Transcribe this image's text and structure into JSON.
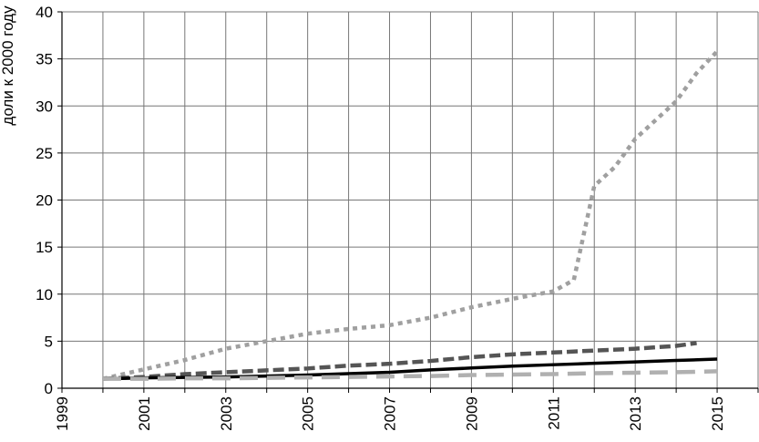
{
  "chart_data": {
    "type": "line",
    "title": "",
    "xlabel": "",
    "ylabel": "доли к 2000 году",
    "xlim": [
      1999,
      2016
    ],
    "ylim": [
      0,
      40
    ],
    "x_ticks": [
      "1999",
      "2001",
      "2003",
      "2005",
      "2007",
      "2009",
      "2011",
      "2013",
      "2015"
    ],
    "y_ticks": [
      "0",
      "5",
      "10",
      "15",
      "20",
      "25",
      "30",
      "35",
      "40"
    ],
    "grid": true,
    "legend": "none",
    "series": [
      {
        "style": "dotted",
        "color": "#a0a0a0",
        "x": [
          2000,
          2001,
          2002,
          2003,
          2004,
          2005,
          2006,
          2007,
          2008,
          2009,
          2010,
          2011,
          2011.5,
          2012,
          2012.5,
          2013,
          2013.5,
          2014,
          2014.5,
          2015
        ],
        "y": [
          1.0,
          2.0,
          3.0,
          4.2,
          5.0,
          5.8,
          6.3,
          6.7,
          7.5,
          8.6,
          9.5,
          10.3,
          11.5,
          21.5,
          23.5,
          26.5,
          28.5,
          30.5,
          33.5,
          35.8
        ]
      },
      {
        "style": "dashed",
        "color": "#555555",
        "x": [
          2000,
          2001,
          2002,
          2003,
          2004,
          2005,
          2006,
          2007,
          2008,
          2009,
          2010,
          2011,
          2012,
          2013,
          2014,
          2014.5
        ],
        "y": [
          1.0,
          1.2,
          1.5,
          1.7,
          1.9,
          2.1,
          2.4,
          2.6,
          2.9,
          3.3,
          3.6,
          3.8,
          4.0,
          4.2,
          4.5,
          4.8
        ]
      },
      {
        "style": "solid",
        "color": "#000000",
        "x": [
          2000,
          2001,
          2002,
          2003,
          2004,
          2005,
          2006,
          2007,
          2008,
          2009,
          2010,
          2011,
          2012,
          2013,
          2014,
          2015
        ],
        "y": [
          1.0,
          1.1,
          1.15,
          1.2,
          1.3,
          1.4,
          1.55,
          1.7,
          1.95,
          2.15,
          2.35,
          2.5,
          2.65,
          2.8,
          2.95,
          3.1
        ]
      },
      {
        "style": "long-dash",
        "color": "#b0b0b0",
        "x": [
          2000,
          2001,
          2002,
          2003,
          2004,
          2005,
          2006,
          2007,
          2008,
          2009,
          2010,
          2011,
          2012,
          2013,
          2014,
          2015
        ],
        "y": [
          1.0,
          1.0,
          1.05,
          1.05,
          1.1,
          1.15,
          1.2,
          1.25,
          1.3,
          1.4,
          1.45,
          1.5,
          1.6,
          1.65,
          1.7,
          1.8
        ]
      }
    ]
  }
}
